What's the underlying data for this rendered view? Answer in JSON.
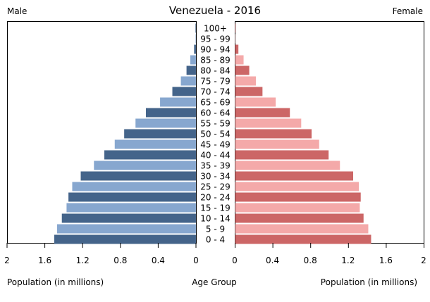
{
  "chart_data": {
    "type": "bar",
    "subtype": "population-pyramid",
    "title": "Venezuela - 2016",
    "left_label": "Male",
    "right_label": "Female",
    "xlabel_left": "Population (in millions)",
    "xlabel_center": "Age Group",
    "xlabel_right": "Population (in millions)",
    "xlim": [
      0,
      2
    ],
    "ticks": [
      "2",
      "1.6",
      "1.2",
      "0.8",
      "0.4",
      "0"
    ],
    "ticks_right": [
      "0",
      "0.4",
      "0.8",
      "1.2",
      "1.6",
      "2"
    ],
    "tick_values": [
      2,
      1.6,
      1.2,
      0.8,
      0.4,
      0
    ],
    "grid": false,
    "categories": [
      "0 - 4",
      "5 - 9",
      "10 - 14",
      "15 - 19",
      "20 - 24",
      "25 - 29",
      "30 - 34",
      "35 - 39",
      "40 - 44",
      "45 - 49",
      "50 - 54",
      "55 - 59",
      "60 - 64",
      "65 - 69",
      "70 - 74",
      "75 - 79",
      "80 - 84",
      "85 - 89",
      "90 - 94",
      "95 - 99",
      "100+"
    ],
    "series": [
      {
        "name": "Male",
        "values": [
          1.5,
          1.47,
          1.42,
          1.37,
          1.35,
          1.31,
          1.22,
          1.08,
          0.97,
          0.86,
          0.76,
          0.64,
          0.53,
          0.38,
          0.25,
          0.16,
          0.1,
          0.06,
          0.02,
          0.004,
          0.005
        ]
      },
      {
        "name": "Female",
        "values": [
          1.44,
          1.41,
          1.36,
          1.32,
          1.33,
          1.31,
          1.25,
          1.11,
          0.99,
          0.89,
          0.81,
          0.7,
          0.58,
          0.43,
          0.29,
          0.22,
          0.15,
          0.09,
          0.035,
          0.003,
          0.005
        ]
      }
    ],
    "colors": {
      "male_dark": "#44648a",
      "male_light": "#87a7cf",
      "female_dark": "#cc6666",
      "female_light": "#f4a9a9"
    }
  }
}
